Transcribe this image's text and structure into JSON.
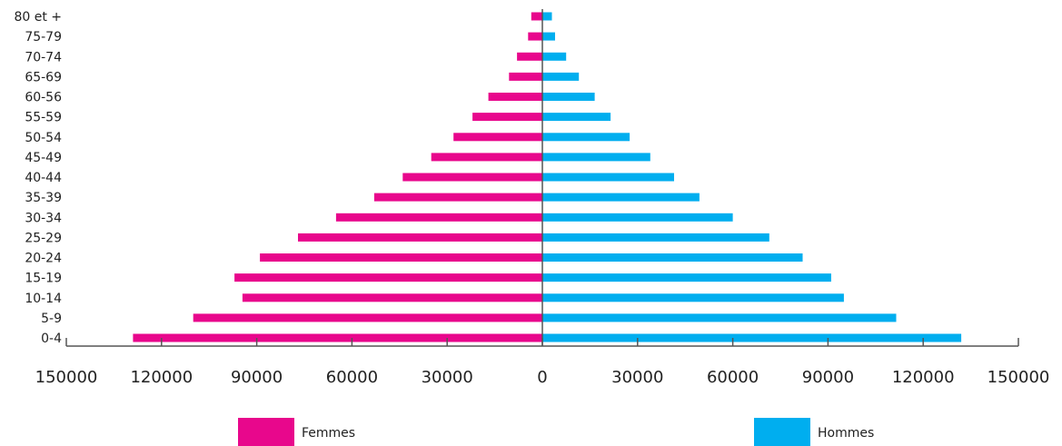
{
  "chart_data": {
    "type": "bar",
    "orientation": "horizontal",
    "subtype": "population-pyramid",
    "categories": [
      "80 et +",
      "75-79",
      "70-74",
      "65-69",
      "60-56",
      "55-59",
      "50-54",
      "45-49",
      "40-44",
      "35-39",
      "30-34",
      "25-29",
      "20-24",
      "15-19",
      "10-14",
      "5-9",
      "0-4"
    ],
    "series": [
      {
        "name": "Femmes",
        "side": "left",
        "color": "#e8078c",
        "values": [
          3500,
          4500,
          8000,
          10500,
          17000,
          22000,
          28000,
          35000,
          44000,
          53000,
          65000,
          77000,
          89000,
          97000,
          94500,
          110000,
          129000
        ]
      },
      {
        "name": "Hommes",
        "side": "right",
        "color": "#00aeef",
        "values": [
          3000,
          4000,
          7500,
          11500,
          16500,
          21500,
          27500,
          34000,
          41500,
          49500,
          60000,
          71500,
          82000,
          91000,
          95000,
          111500,
          132000
        ]
      }
    ],
    "xlim": [
      -150000,
      150000
    ],
    "x_ticks": [
      "150000",
      "120000",
      "90000",
      "60000",
      "30000",
      "0",
      "30000",
      "60000",
      "90000",
      "120000",
      "150000"
    ],
    "x_tick_values": [
      -150000,
      -120000,
      -90000,
      -60000,
      -30000,
      0,
      30000,
      60000,
      90000,
      120000,
      150000
    ],
    "title": "",
    "xlabel": "",
    "ylabel": "",
    "grid": false,
    "legend_position": "bottom",
    "axis_color": "#555555"
  }
}
